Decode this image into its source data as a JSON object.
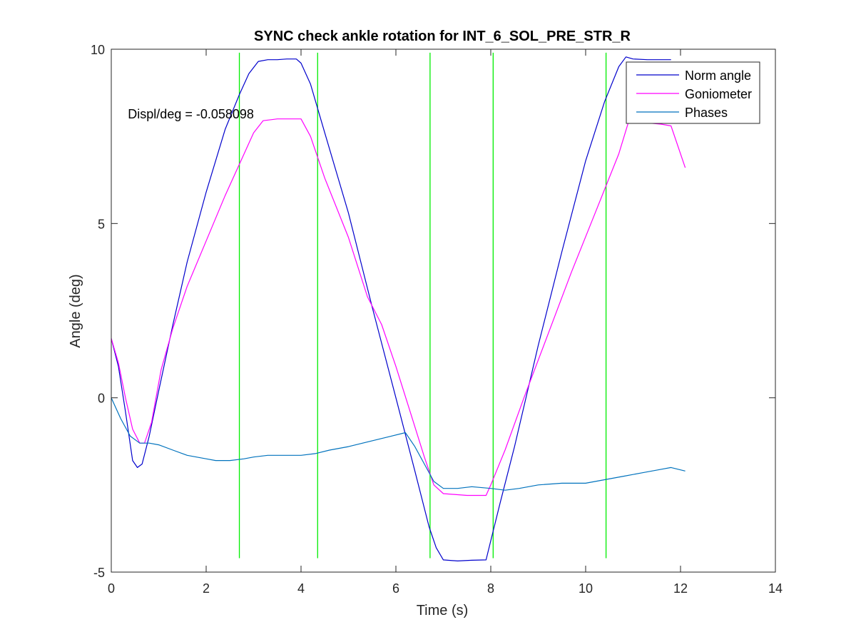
{
  "chart_data": {
    "type": "line",
    "title": "SYNC check ankle rotation for INT_6_SOL_PRE_STR_R",
    "xlabel": "Time (s)",
    "ylabel": "Angle (deg)",
    "xlim": [
      0,
      14
    ],
    "ylim": [
      -5,
      10
    ],
    "xticks": [
      0,
      2,
      4,
      6,
      8,
      10,
      12,
      14
    ],
    "yticks": [
      -5,
      0,
      5,
      10
    ],
    "grid": false,
    "box": true,
    "legend_position": "top-right",
    "annotation": {
      "text": "Displ/deg = -0.058098",
      "x": 0.2,
      "y": 8.1
    },
    "series": [
      {
        "name": "Norm angle",
        "color": "#0000cc",
        "x": [
          0,
          0.15,
          0.3,
          0.45,
          0.55,
          0.65,
          0.8,
          1.0,
          1.3,
          1.6,
          2.0,
          2.4,
          2.7,
          2.9,
          3.1,
          3.3,
          3.5,
          3.7,
          3.9,
          4.0,
          4.2,
          4.5,
          5.0,
          5.5,
          6.0,
          6.4,
          6.7,
          6.85,
          7.0,
          7.3,
          7.6,
          7.9,
          8.0,
          8.2,
          8.5,
          9.0,
          9.5,
          10.0,
          10.4,
          10.7,
          10.85,
          11.0,
          11.3,
          11.6,
          11.8
        ],
        "values": [
          1.7,
          0.9,
          -0.4,
          -1.8,
          -2.0,
          -1.9,
          -1.1,
          0.2,
          2.1,
          3.9,
          5.9,
          7.7,
          8.7,
          9.3,
          9.65,
          9.7,
          9.7,
          9.72,
          9.72,
          9.6,
          9.0,
          7.6,
          5.3,
          2.6,
          0.0,
          -2.1,
          -3.7,
          -4.3,
          -4.65,
          -4.68,
          -4.66,
          -4.65,
          -4.1,
          -3.0,
          -1.4,
          1.5,
          4.2,
          6.8,
          8.5,
          9.5,
          9.78,
          9.72,
          9.7,
          9.7,
          9.7
        ]
      },
      {
        "name": "Goniometer",
        "color": "#ff00ff",
        "x": [
          0,
          0.15,
          0.3,
          0.45,
          0.6,
          0.7,
          0.85,
          1.05,
          1.3,
          1.6,
          2.0,
          2.4,
          2.8,
          3.0,
          3.2,
          3.5,
          3.8,
          4.0,
          4.2,
          4.5,
          5.0,
          5.4,
          5.7,
          6.0,
          6.3,
          6.6,
          6.8,
          7.0,
          7.5,
          7.9,
          8.0,
          8.3,
          8.7,
          9.2,
          9.7,
          10.2,
          10.7,
          10.9,
          11.2,
          11.6,
          11.8,
          12.1
        ],
        "values": [
          1.7,
          1.0,
          0.0,
          -0.9,
          -1.3,
          -1.3,
          -0.7,
          0.8,
          2.0,
          3.2,
          4.5,
          5.8,
          7.0,
          7.6,
          7.95,
          8.0,
          8.0,
          8.0,
          7.5,
          6.3,
          4.6,
          2.9,
          2.1,
          0.9,
          -0.4,
          -1.7,
          -2.5,
          -2.75,
          -2.8,
          -2.8,
          -2.5,
          -1.5,
          0.0,
          1.8,
          3.6,
          5.3,
          7.0,
          7.9,
          7.9,
          7.85,
          7.8,
          6.6
        ]
      },
      {
        "name": "Phases",
        "color": "#0072bd",
        "x": [
          0,
          0.2,
          0.4,
          0.6,
          0.8,
          1.0,
          1.3,
          1.6,
          2.0,
          2.2,
          2.5,
          2.8,
          3.0,
          3.3,
          3.7,
          4.0,
          4.3,
          4.6,
          5.0,
          5.3,
          5.6,
          5.9,
          6.2,
          6.4,
          6.6,
          6.8,
          7.0,
          7.3,
          7.6,
          8.0,
          8.3,
          8.6,
          9.0,
          9.5,
          10.0,
          10.4,
          10.8,
          11.2,
          11.6,
          11.8,
          12.1
        ],
        "values": [
          0.0,
          -0.6,
          -1.1,
          -1.3,
          -1.3,
          -1.35,
          -1.5,
          -1.65,
          -1.75,
          -1.8,
          -1.8,
          -1.75,
          -1.7,
          -1.65,
          -1.65,
          -1.65,
          -1.6,
          -1.5,
          -1.4,
          -1.3,
          -1.2,
          -1.1,
          -1.0,
          -1.4,
          -1.9,
          -2.4,
          -2.6,
          -2.6,
          -2.55,
          -2.6,
          -2.65,
          -2.6,
          -2.5,
          -2.45,
          -2.45,
          -2.35,
          -2.25,
          -2.15,
          -2.05,
          -2.0,
          -2.1
        ]
      }
    ],
    "vertical_markers": {
      "color": "#00ee00",
      "x": [
        2.7,
        4.35,
        6.72,
        8.05,
        10.43
      ],
      "y_range": [
        -4.6,
        9.9
      ]
    }
  }
}
